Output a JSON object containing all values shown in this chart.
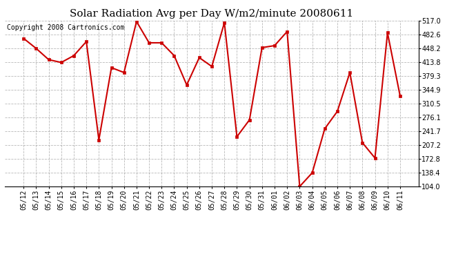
{
  "title": "Solar Radiation Avg per Day W/m2/minute 20080611",
  "copyright_text": "Copyright 2008 Cartronics.com",
  "labels": [
    "05/12",
    "05/13",
    "05/14",
    "05/15",
    "05/16",
    "05/17",
    "05/18",
    "05/19",
    "05/20",
    "05/21",
    "05/22",
    "05/23",
    "05/24",
    "05/25",
    "05/26",
    "05/27",
    "05/28",
    "05/29",
    "05/30",
    "05/31",
    "06/01",
    "06/02",
    "06/03",
    "06/04",
    "06/05",
    "06/06",
    "06/07",
    "06/08",
    "06/09",
    "06/10",
    "06/11"
  ],
  "values": [
    473,
    448,
    420,
    413,
    430,
    465,
    220,
    400,
    388,
    515,
    462,
    462,
    430,
    357,
    425,
    403,
    512,
    228,
    270,
    450,
    455,
    490,
    104,
    138,
    248,
    291,
    388,
    213,
    175,
    487,
    330
  ],
  "line_color": "#cc0000",
  "marker_color": "#cc0000",
  "bg_color": "#ffffff",
  "grid_color": "#888888",
  "ylim_min": 104.0,
  "ylim_max": 517.0,
  "yticks": [
    104.0,
    138.4,
    172.8,
    207.2,
    241.7,
    276.1,
    310.5,
    344.9,
    379.3,
    413.8,
    448.2,
    482.6,
    517.0
  ],
  "title_fontsize": 11,
  "copyright_fontsize": 7,
  "tick_fontsize": 7
}
